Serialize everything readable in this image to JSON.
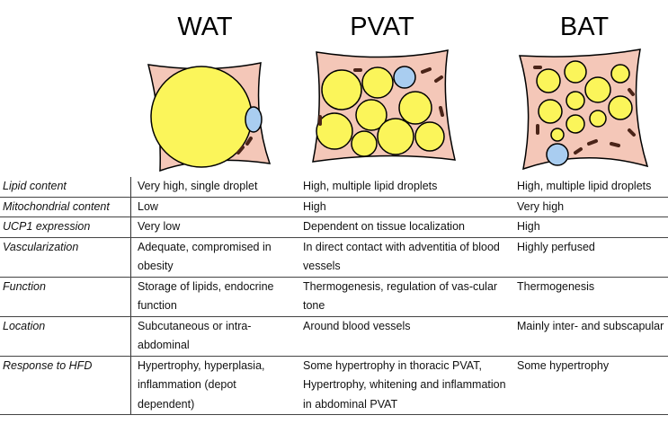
{
  "titles": {
    "wat": "WAT",
    "pvat": "PVAT",
    "bat": "BAT"
  },
  "colors": {
    "cytoplasm": "#f4c7b8",
    "lipid": "#fbf55a",
    "mito": "#4a2418",
    "nucleus": "#a9cdf0"
  },
  "rows": [
    {
      "label": "Lipid content",
      "wat": "Very high, single droplet",
      "pvat": "High, multiple lipid droplets",
      "bat": "High, multiple lipid droplets"
    },
    {
      "label": "Mitochondrial content",
      "wat": "Low",
      "pvat": "High",
      "bat": "Very high"
    },
    {
      "label": "UCP1 expression",
      "wat": "Very low",
      "pvat": "Dependent on tissue localization",
      "bat": "High"
    },
    {
      "label": "Vascularization",
      "wat": "Adequate, compromised in obesity",
      "pvat": "In direct contact with adventitia of blood vessels",
      "bat": "Highly perfused"
    },
    {
      "label": "Function",
      "wat": "Storage of lipids, endocrine function",
      "pvat": "Thermogenesis, regulation of vas-cular tone",
      "bat": "Thermogenesis"
    },
    {
      "label": "Location",
      "wat": "Subcutaneous or intra-abdominal",
      "pvat": "Around blood vessels",
      "bat": "Mainly inter- and subscapular"
    },
    {
      "label": "Response to HFD",
      "wat": "Hypertrophy, hyperplasia, inflammation (depot dependent)",
      "pvat": "Some hypertrophy in thoracic PVAT, Hypertrophy, whitening and inflammation in abdominal PVAT",
      "bat": "Some hypertrophy"
    }
  ]
}
